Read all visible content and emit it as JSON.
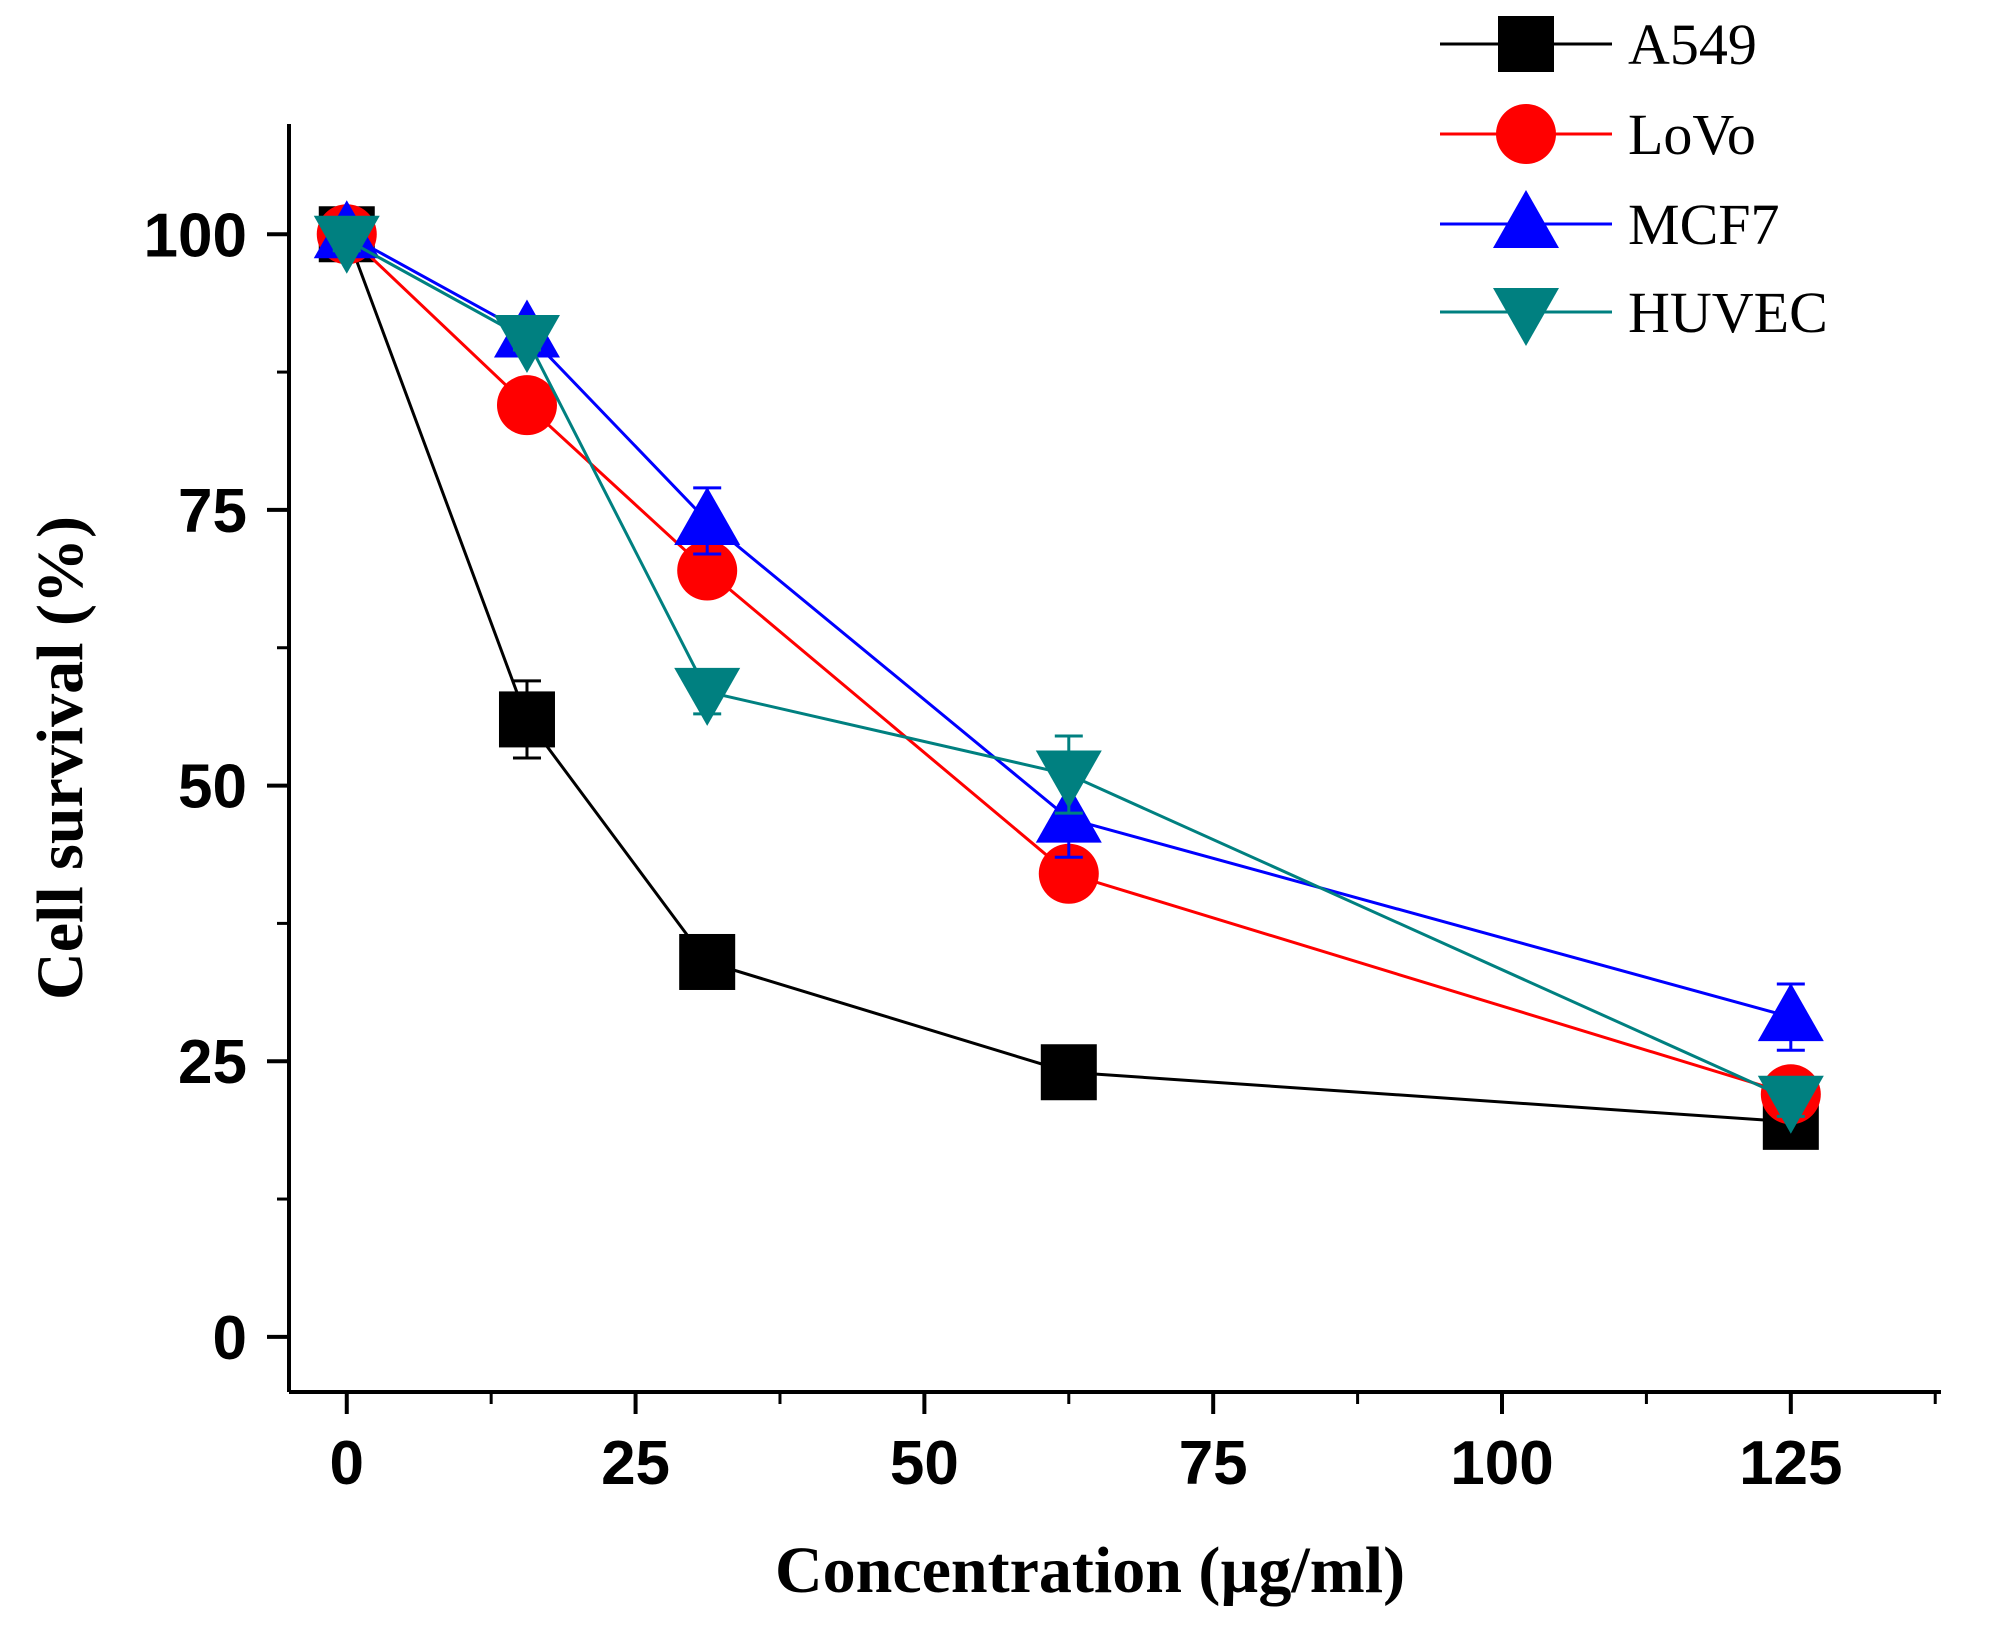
{
  "chart_data": {
    "type": "line",
    "title": "",
    "xlabel": "Concentration (µg/ml)",
    "ylabel": "Cell survival (%)",
    "xlim": [
      -5,
      138
    ],
    "ylim": [
      -5,
      110
    ],
    "x_ticks": [
      0,
      25,
      50,
      75,
      100,
      125
    ],
    "x_tick_labels": [
      "0",
      "25",
      "50",
      "75",
      "100",
      "125"
    ],
    "y_ticks": [
      0,
      25,
      50,
      75,
      100
    ],
    "y_tick_labels": [
      "0",
      "25",
      "50",
      "75",
      "100"
    ],
    "grid": false,
    "legend_position": "top-right",
    "x": [
      0,
      15.6,
      31.2,
      62.5,
      125
    ],
    "series": [
      {
        "name": "A549",
        "color": "#000000",
        "marker": "square",
        "values": [
          100,
          56,
          34,
          24,
          19.5
        ],
        "errors": [
          1.5,
          3.5,
          0,
          0,
          1.5
        ]
      },
      {
        "name": "LoVo",
        "color": "#ff0000",
        "marker": "circle",
        "values": [
          100,
          84.5,
          69.5,
          42,
          22
        ],
        "errors": [
          1.5,
          0,
          2,
          0,
          0
        ]
      },
      {
        "name": "MCF7",
        "color": "#0000ff",
        "marker": "triangle-up",
        "values": [
          100,
          91,
          74,
          47,
          29
        ],
        "errors": [
          1.5,
          1,
          3,
          3.5,
          3
        ]
      },
      {
        "name": "HUVEC",
        "color": "#008080",
        "marker": "triangle-down",
        "values": [
          99.5,
          90.5,
          58.5,
          51,
          21.5
        ],
        "errors": [
          1,
          1,
          2,
          3.5,
          1.5
        ]
      }
    ]
  }
}
